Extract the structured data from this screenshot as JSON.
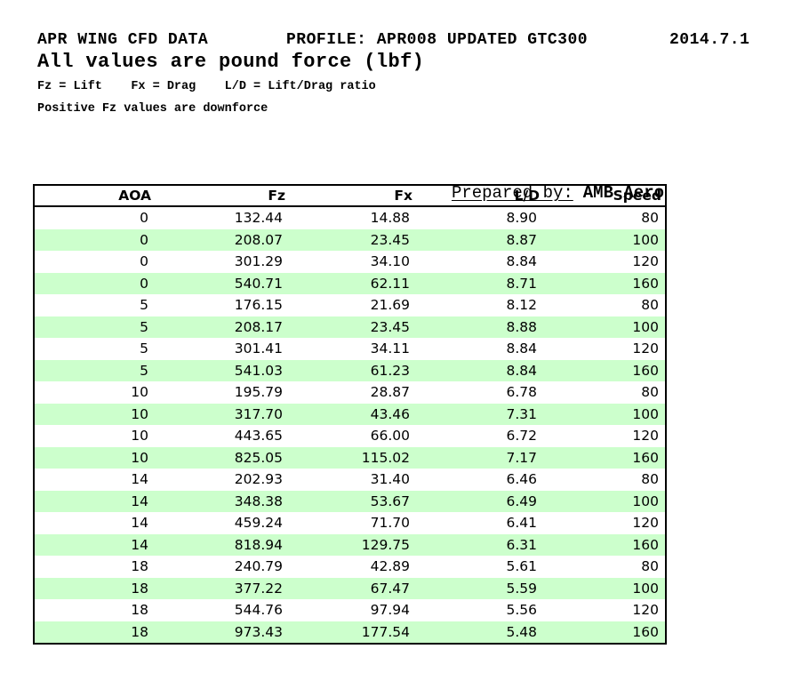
{
  "header": {
    "report_title": "APR WING CFD DATA",
    "profile": "PROFILE: APR008 UPDATED GTC300",
    "version_date": "2014.7.1",
    "subtitle": "All values are pound force (lbf)",
    "legend": "Fz = Lift    Fx = Drag    L/D = Lift/Drag ratio",
    "note": "Positive Fz values are downforce"
  },
  "prepared_by": {
    "label": "Prepared by:",
    "value": "AMB Aero"
  },
  "table": {
    "columns": [
      {
        "key": "aoa",
        "label": "AOA"
      },
      {
        "key": "fz",
        "label": "Fz"
      },
      {
        "key": "fx",
        "label": "Fx"
      },
      {
        "key": "ld",
        "label": "L/D"
      },
      {
        "key": "speed",
        "label": "Speed"
      }
    ],
    "rows": [
      [
        "0",
        "132.44",
        "14.88",
        "8.90",
        "80"
      ],
      [
        "0",
        "208.07",
        "23.45",
        "8.87",
        "100"
      ],
      [
        "0",
        "301.29",
        "34.10",
        "8.84",
        "120"
      ],
      [
        "0",
        "540.71",
        "62.11",
        "8.71",
        "160"
      ],
      [
        "5",
        "176.15",
        "21.69",
        "8.12",
        "80"
      ],
      [
        "5",
        "208.17",
        "23.45",
        "8.88",
        "100"
      ],
      [
        "5",
        "301.41",
        "34.11",
        "8.84",
        "120"
      ],
      [
        "5",
        "541.03",
        "61.23",
        "8.84",
        "160"
      ],
      [
        "10",
        "195.79",
        "28.87",
        "6.78",
        "80"
      ],
      [
        "10",
        "317.70",
        "43.46",
        "7.31",
        "100"
      ],
      [
        "10",
        "443.65",
        "66.00",
        "6.72",
        "120"
      ],
      [
        "10",
        "825.05",
        "115.02",
        "7.17",
        "160"
      ],
      [
        "14",
        "202.93",
        "31.40",
        "6.46",
        "80"
      ],
      [
        "14",
        "348.38",
        "53.67",
        "6.49",
        "100"
      ],
      [
        "14",
        "459.24",
        "71.70",
        "6.41",
        "120"
      ],
      [
        "14",
        "818.94",
        "129.75",
        "6.31",
        "160"
      ],
      [
        "18",
        "240.79",
        "42.89",
        "5.61",
        "80"
      ],
      [
        "18",
        "377.22",
        "67.47",
        "5.59",
        "100"
      ],
      [
        "18",
        "544.76",
        "97.94",
        "5.56",
        "120"
      ],
      [
        "18",
        "973.43",
        "177.54",
        "5.48",
        "160"
      ]
    ]
  },
  "colors": {
    "row_stripe_green": "#ccffcc",
    "table_border": "#000000",
    "text": "#000000",
    "background": "#ffffff"
  }
}
